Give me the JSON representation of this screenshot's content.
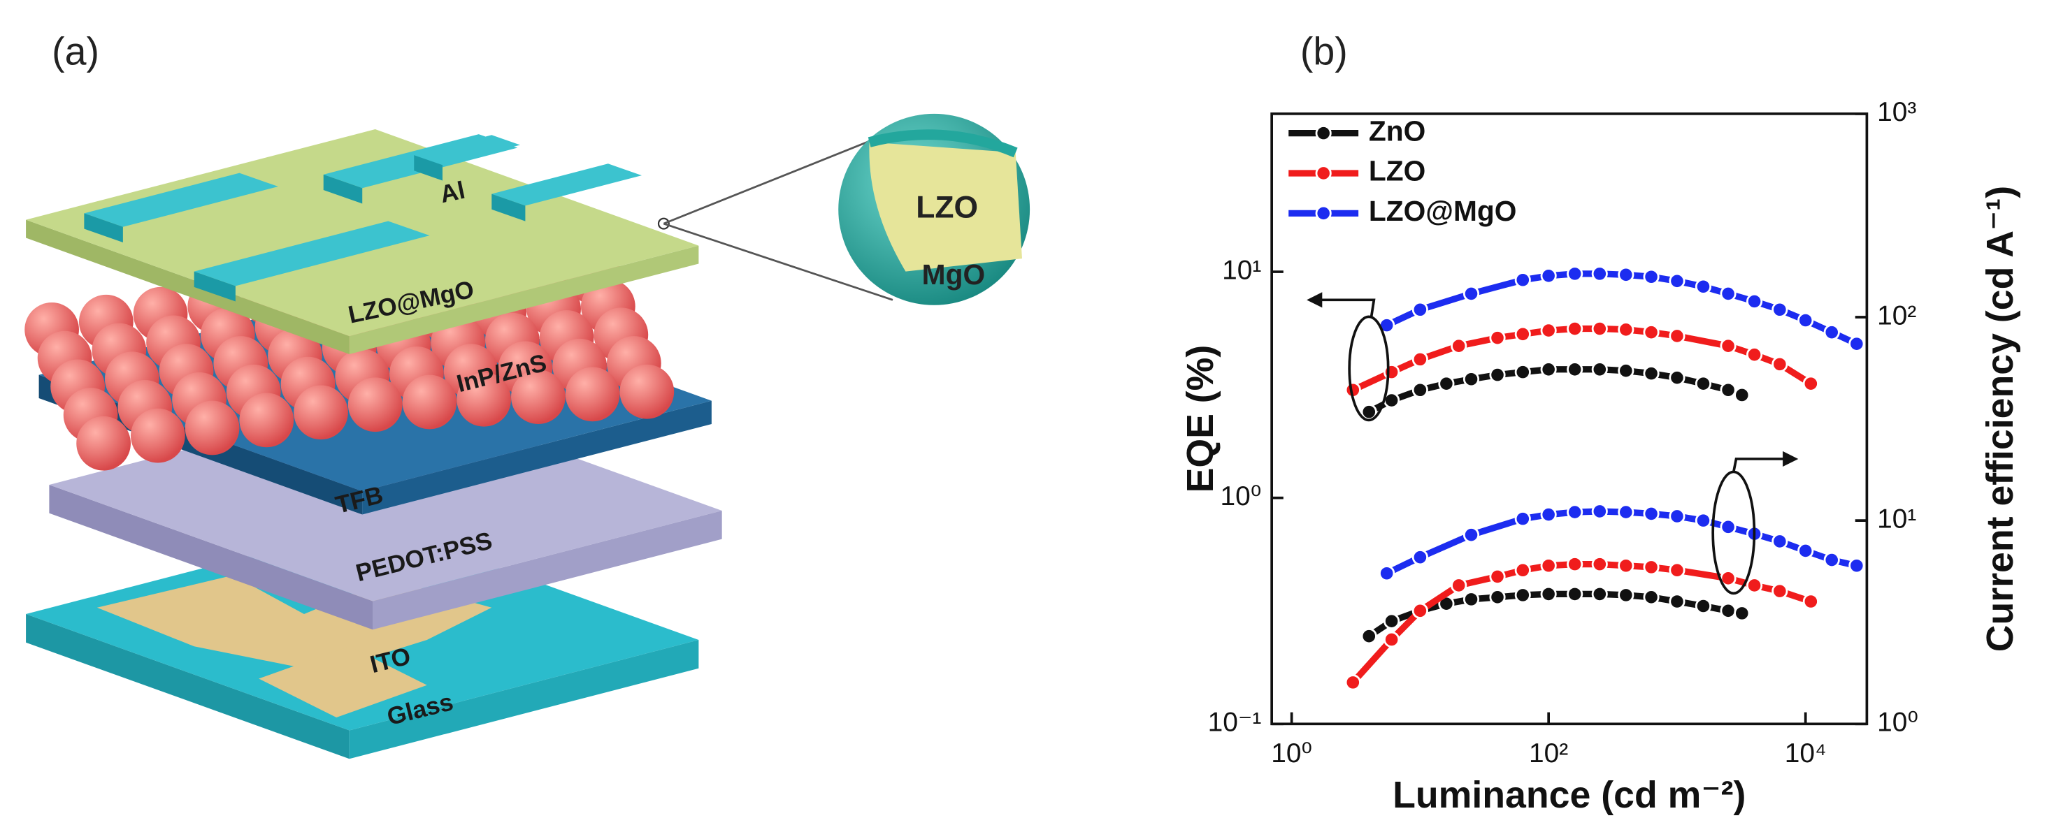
{
  "diagram": {
    "panel_label": "(a)",
    "layers": [
      "Al",
      "LZO@MgO",
      "InP/ZnS",
      "TFB",
      "PEDOT:PSS",
      "ITO",
      "Glass"
    ],
    "inset": {
      "core": "LZO",
      "shell": "MgO"
    }
  },
  "chart_data": {
    "type": "line",
    "panel_label": "(b)",
    "xlabel": "Luminance (cd m⁻²)",
    "ylabel": "EQE (%)",
    "y2label": "Current efficiency (cd A⁻¹)",
    "xscale": "log",
    "yscale": "log",
    "y2scale": "log",
    "xlim": [
      0.7,
      30000
    ],
    "xticks": [
      {
        "value": 1,
        "label": "10⁰"
      },
      {
        "value": 100,
        "label": "10²"
      },
      {
        "value": 10000,
        "label": "10⁴"
      }
    ],
    "ylim": [
      0.1,
      50
    ],
    "yticks": [
      {
        "value": 0.1,
        "label": "10⁻¹"
      },
      {
        "value": 1,
        "label": "10⁰"
      },
      {
        "value": 10,
        "label": "10¹"
      }
    ],
    "y2lim": [
      1,
      1000
    ],
    "y2ticks": [
      {
        "value": 1,
        "label": "10⁰"
      },
      {
        "value": 10,
        "label": "10¹"
      },
      {
        "value": 100,
        "label": "10²"
      },
      {
        "value": 1000,
        "label": "10³"
      }
    ],
    "legend": "upper left",
    "series": [
      {
        "name": "ZnO",
        "color": "#111111",
        "axis": "y",
        "x": [
          4,
          6,
          10,
          16,
          25,
          40,
          63,
          100,
          160,
          250,
          400,
          630,
          1000,
          1600,
          2500,
          3200
        ],
        "values": [
          2.4,
          2.7,
          3.0,
          3.2,
          3.35,
          3.5,
          3.6,
          3.7,
          3.7,
          3.7,
          3.65,
          3.55,
          3.4,
          3.2,
          3.0,
          2.85
        ]
      },
      {
        "name": "LZO",
        "color": "#f01c1c",
        "axis": "y",
        "x": [
          3,
          6,
          10,
          20,
          40,
          63,
          100,
          160,
          250,
          400,
          630,
          1000,
          2500,
          4000,
          6300,
          11000
        ],
        "values": [
          3.0,
          3.6,
          4.1,
          4.7,
          5.1,
          5.3,
          5.5,
          5.6,
          5.6,
          5.55,
          5.4,
          5.2,
          4.7,
          4.3,
          3.9,
          3.2
        ]
      },
      {
        "name": "LZO@MgO",
        "color": "#1c2cf0",
        "axis": "y",
        "x": [
          5.5,
          10,
          25,
          63,
          100,
          160,
          250,
          400,
          630,
          1000,
          1600,
          2500,
          4000,
          6300,
          10000,
          16000,
          25000
        ],
        "values": [
          5.8,
          6.8,
          8.0,
          9.2,
          9.6,
          9.8,
          9.8,
          9.7,
          9.5,
          9.1,
          8.6,
          8.0,
          7.4,
          6.8,
          6.1,
          5.4,
          4.8
        ]
      },
      {
        "name": "ZnO",
        "color": "#111111",
        "axis": "y2",
        "x": [
          4,
          6,
          10,
          16,
          25,
          40,
          63,
          100,
          160,
          250,
          400,
          630,
          1000,
          1600,
          2500,
          3200
        ],
        "values": [
          2.7,
          3.2,
          3.6,
          3.9,
          4.1,
          4.2,
          4.3,
          4.35,
          4.35,
          4.35,
          4.3,
          4.2,
          4.0,
          3.8,
          3.6,
          3.5
        ]
      },
      {
        "name": "LZO",
        "color": "#f01c1c",
        "axis": "y2",
        "x": [
          3,
          6,
          10,
          20,
          40,
          63,
          100,
          160,
          250,
          400,
          630,
          1000,
          2500,
          4000,
          6300,
          11000
        ],
        "values": [
          1.6,
          2.6,
          3.6,
          4.8,
          5.3,
          5.7,
          6.0,
          6.1,
          6.1,
          6.0,
          5.9,
          5.7,
          5.2,
          4.8,
          4.5,
          4.0
        ]
      },
      {
        "name": "LZO@MgO",
        "color": "#1c2cf0",
        "axis": "y2",
        "x": [
          5.5,
          10,
          25,
          63,
          100,
          160,
          250,
          400,
          630,
          1000,
          1600,
          2500,
          4000,
          6300,
          10000,
          16000,
          25000
        ],
        "values": [
          5.5,
          6.6,
          8.5,
          10.2,
          10.7,
          11,
          11.1,
          11,
          10.8,
          10.5,
          10,
          9.3,
          8.6,
          7.9,
          7.1,
          6.4,
          6.0
        ]
      }
    ]
  }
}
